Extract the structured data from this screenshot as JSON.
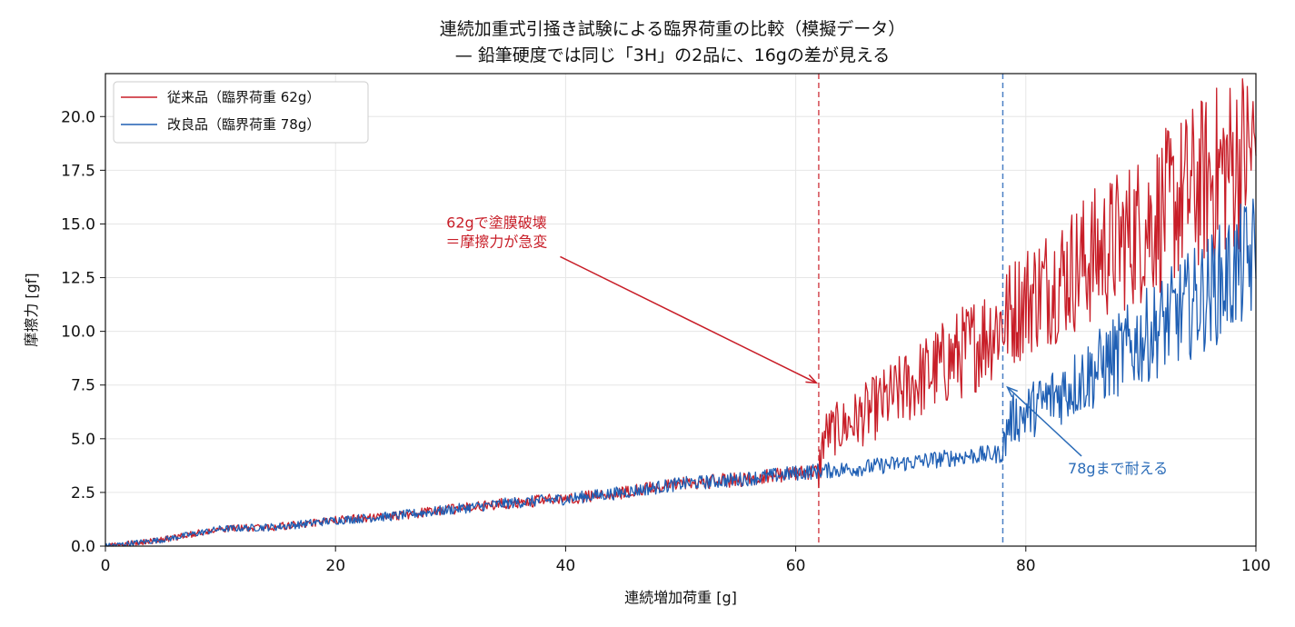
{
  "chart_data": {
    "type": "line",
    "title": "連続加重式引掻き試験による臨界荷重の比較（模擬データ）",
    "subtitle": "— 鉛筆硬度では同じ「3H」の2品に、16gの差が見える",
    "xlabel": "連続増加荷重 [g]",
    "ylabel": "摩擦力 [gf]",
    "xlim": [
      0,
      100
    ],
    "ylim": [
      0,
      22
    ],
    "xticks": [
      0,
      20,
      40,
      60,
      80,
      100
    ],
    "xtick_labels": [
      "0",
      "20",
      "40",
      "60",
      "80",
      "100"
    ],
    "yticks": [
      0,
      2.5,
      5,
      7.5,
      10,
      12.5,
      15,
      17.5,
      20
    ],
    "ytick_labels": [
      "0.0",
      "2.5",
      "5.0",
      "7.5",
      "10.0",
      "12.5",
      "15.0",
      "17.5",
      "20.0"
    ],
    "grid": true,
    "legend_position": "top-left",
    "series": [
      {
        "name": "従来品（臨界荷重 62g）",
        "color": "#c81e28",
        "critical_load": 62,
        "x": [
          0,
          5,
          10,
          15,
          20,
          25,
          30,
          35,
          40,
          45,
          50,
          55,
          60,
          62,
          62.5,
          65,
          70,
          75,
          78,
          80,
          85,
          90,
          95,
          100
        ],
        "y": [
          0,
          0.3,
          0.8,
          0.9,
          1.2,
          1.4,
          1.7,
          2.0,
          2.2,
          2.5,
          2.9,
          3.1,
          3.4,
          3.5,
          5.2,
          5.8,
          7.5,
          9.2,
          10.5,
          11.5,
          13.2,
          14.8,
          16.8,
          18.5
        ]
      },
      {
        "name": "改良品（臨界荷重 78g）",
        "color": "#1f5fb4",
        "critical_load": 78,
        "x": [
          0,
          5,
          10,
          15,
          20,
          25,
          30,
          35,
          40,
          45,
          50,
          55,
          60,
          62,
          65,
          70,
          75,
          78,
          78.5,
          80,
          85,
          90,
          95,
          100
        ],
        "y": [
          0,
          0.3,
          0.8,
          0.9,
          1.2,
          1.4,
          1.7,
          2.0,
          2.2,
          2.5,
          2.9,
          3.1,
          3.4,
          3.5,
          3.6,
          3.9,
          4.2,
          4.3,
          5.8,
          6.2,
          7.8,
          9.6,
          11.5,
          13.5
        ]
      }
    ],
    "vlines": [
      {
        "x": 62,
        "color": "#d44a52",
        "style": "dashed"
      },
      {
        "x": 78,
        "color": "#4a7fc4",
        "style": "dashed"
      }
    ],
    "annotations": [
      {
        "lines": [
          "62gで塗膜破壊",
          "＝摩擦力が急変"
        ],
        "color": "#c81e28",
        "text_x": 34,
        "text_y": 14.6,
        "arrow_x": 61.8,
        "arrow_y": 7.6
      },
      {
        "lines": [
          "78gまで耐える"
        ],
        "color": "#2b6cb8",
        "text_x": 88,
        "text_y": 3.6,
        "arrow_x": 78.4,
        "arrow_y": 7.4
      }
    ]
  }
}
